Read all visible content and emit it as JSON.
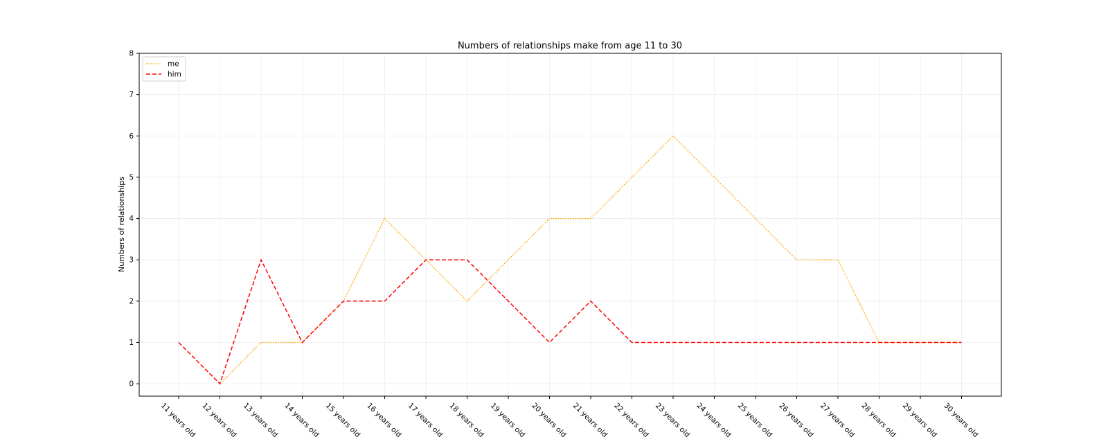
{
  "chart_data": {
    "type": "line",
    "title": "Numbers of relationships make from age 11 to 30",
    "xlabel": "",
    "ylabel": "Numbers of relationships",
    "categories": [
      "11 years old",
      "12 years old",
      "13 years old",
      "14 years old",
      "15 years old",
      "16 years old",
      "17 years old",
      "18 years old",
      "19 years old",
      "20 years old",
      "21 years old",
      "22 years old",
      "23 years old",
      "24 years old",
      "25 years old",
      "26 years old",
      "27 years old",
      "28 years old",
      "29 years old",
      "30 years old"
    ],
    "series": [
      {
        "name": "me",
        "color": "#ffa500",
        "style": "dotted",
        "values": [
          null,
          0,
          1,
          1,
          2,
          4,
          3,
          2,
          3,
          4,
          4,
          5,
          6,
          5,
          4,
          3,
          3,
          1,
          1,
          1
        ]
      },
      {
        "name": "him",
        "color": "#ff0000",
        "style": "dashed",
        "values": [
          1,
          0,
          3,
          1,
          2,
          2,
          3,
          3,
          2,
          1,
          2,
          1,
          1,
          1,
          1,
          1,
          1,
          1,
          1,
          1
        ]
      }
    ],
    "ylim": [
      -0.3,
      8
    ],
    "yticks": [
      0,
      1,
      2,
      3,
      4,
      5,
      6,
      7,
      8
    ],
    "grid": true,
    "legend": "top-left"
  }
}
